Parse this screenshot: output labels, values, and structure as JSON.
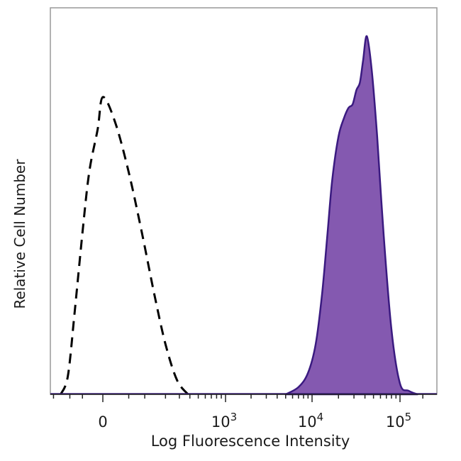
{
  "chart_data": {
    "type": "area",
    "xscale": "biexponential",
    "xlabel": "Log Fluorescence Intensity",
    "ylabel": "Relative Cell Number",
    "x_ticks": [
      {
        "base": "0",
        "exp": ""
      },
      {
        "base": "10",
        "exp": "3"
      },
      {
        "base": "10",
        "exp": "4"
      },
      {
        "base": "10",
        "exp": "5"
      }
    ],
    "grid": false,
    "legend": "none",
    "series": [
      {
        "style": "dashed-outline",
        "color": "#000000",
        "x": [
          -150,
          -110,
          -80,
          -50,
          -30,
          -10,
          0,
          20,
          50,
          90,
          140,
          200,
          280,
          380
        ],
        "y": [
          0,
          0.05,
          0.22,
          0.45,
          0.62,
          0.74,
          0.83,
          0.76,
          0.62,
          0.45,
          0.28,
          0.14,
          0.04,
          0
        ]
      },
      {
        "style": "filled",
        "color": "#8459b0",
        "stroke": "#3a1a80",
        "x": [
          5000,
          7000,
          9000,
          11000,
          13000,
          15000,
          17000,
          20000,
          23000,
          26000,
          29000,
          32000,
          35000,
          38000,
          42000,
          48000,
          55000,
          65000,
          80000,
          100000,
          130000,
          170000
        ],
        "y": [
          0,
          0.02,
          0.06,
          0.14,
          0.28,
          0.45,
          0.6,
          0.72,
          0.77,
          0.8,
          0.81,
          0.85,
          0.87,
          0.93,
          1.0,
          0.9,
          0.72,
          0.45,
          0.18,
          0.03,
          0.01,
          0
        ]
      }
    ]
  }
}
